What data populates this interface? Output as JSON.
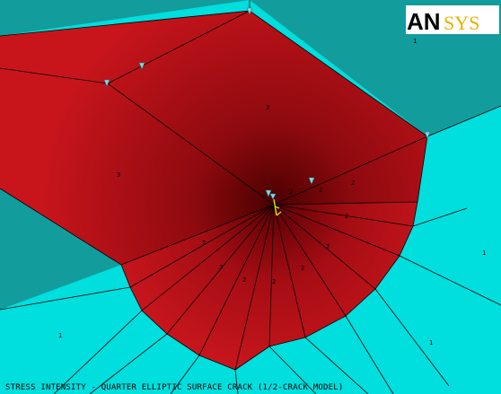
{
  "logo": {
    "primary": "AN",
    "secondary": "SYS"
  },
  "caption": "STRESS INTENSITY - QUARTER ELLIPTIC SURFACE CRACK (1/2-CRACK MODEL)",
  "material_numbers": [
    "1",
    "1",
    "1",
    "1",
    "3",
    "3",
    "2",
    "2",
    "2",
    "2",
    "2",
    "2",
    "2",
    "2",
    "2",
    "2"
  ],
  "colors": {
    "region_teal": "#139c9c",
    "region_cyan": "#00dede",
    "region_red": "#c0121a",
    "region_red_dark": "#5a0002",
    "mesh_line": "#000000",
    "triad_marker": "#7fdede",
    "crack_tip_marker": "#e8e000",
    "logo_primary": "#000000",
    "logo_secondary": "#e8b000"
  },
  "icons": [
    "coordinate-triad-icon",
    "crack-tip-marker-icon"
  ]
}
